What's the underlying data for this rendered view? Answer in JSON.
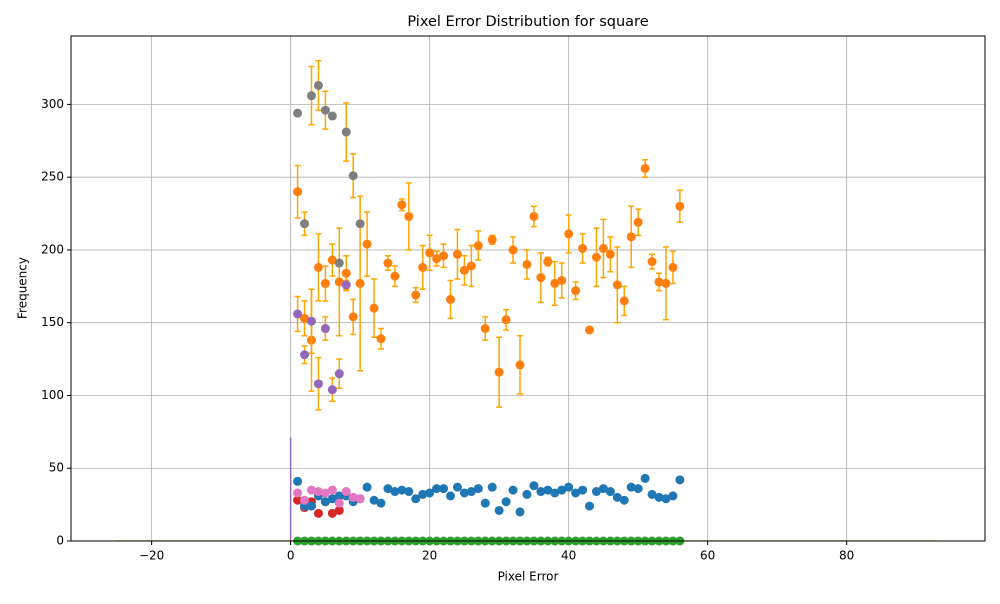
{
  "chart_data": {
    "type": "scatter",
    "title": "Pixel Error Distribution for square",
    "x_label": "Pixel Error",
    "y_label": "Frequency",
    "xlim": [
      -31.6,
      99.9
    ],
    "ylim": [
      0,
      347
    ],
    "xticks": [
      {
        "value": -20,
        "label": "−20"
      },
      0,
      20,
      40,
      60,
      80
    ],
    "yticks": [
      0,
      50,
      100,
      150,
      200,
      250,
      300
    ],
    "grid": true,
    "errorbar_color": "#ffa500",
    "series": [
      {
        "type": "line",
        "color": "#bcbd22",
        "x": [
          -25,
          93
        ],
        "values": [
          0,
          0
        ]
      },
      {
        "type": "line",
        "color": "#9467bd",
        "x": [
          0,
          0
        ],
        "values": [
          0,
          71
        ]
      },
      {
        "color": "#2ca02c",
        "x": [
          1,
          2,
          3,
          4,
          5,
          6,
          7,
          8,
          9,
          10,
          11,
          12,
          13,
          14,
          15,
          16,
          17,
          18,
          19,
          20,
          21,
          22,
          23,
          24,
          25,
          26,
          27,
          28,
          29,
          30,
          31,
          32,
          33,
          34,
          35,
          36,
          37,
          38,
          39,
          40,
          41,
          42,
          43,
          44,
          45,
          46,
          47,
          48,
          49,
          50,
          51,
          52,
          53,
          54,
          55,
          56
        ],
        "values": [
          0,
          0,
          0,
          0,
          0,
          0,
          0,
          0,
          0,
          0,
          0,
          0,
          0,
          0,
          0,
          0,
          0,
          0,
          0,
          0,
          0,
          0,
          0,
          0,
          0,
          0,
          0,
          0,
          0,
          0,
          0,
          0,
          0,
          0,
          0,
          0,
          0,
          0,
          0,
          0,
          0,
          0,
          0,
          0,
          0,
          0,
          0,
          0,
          0,
          0,
          0,
          0,
          0,
          0,
          0,
          0
        ]
      },
      {
        "color": "#d62728",
        "x": [
          1,
          2,
          3,
          4,
          5,
          6,
          7
        ],
        "values": [
          28,
          23,
          27,
          19,
          27,
          19,
          21
        ]
      },
      {
        "color": "#1f77b4",
        "x": [
          1,
          2,
          3,
          4,
          5,
          6,
          7,
          8,
          9,
          10,
          11,
          12,
          13,
          14,
          15,
          16,
          17,
          18,
          19,
          20,
          21,
          22,
          23,
          24,
          25,
          26,
          27,
          28,
          29,
          30,
          31,
          32,
          33,
          34,
          35,
          36,
          37,
          38,
          39,
          40,
          41,
          42,
          43,
          44,
          45,
          46,
          47,
          48,
          49,
          50,
          51,
          52,
          53,
          54,
          55,
          56
        ],
        "values": [
          41,
          24,
          24,
          31,
          27,
          29,
          31,
          31,
          27,
          29,
          37,
          28,
          26,
          36,
          34,
          35,
          34,
          29,
          32,
          33,
          36,
          36,
          31,
          37,
          33,
          34,
          36,
          26,
          37,
          21,
          27,
          35,
          20,
          32,
          38,
          34,
          35,
          33,
          35,
          37,
          33,
          35,
          24,
          34,
          36,
          34,
          30,
          28,
          37,
          36,
          43,
          32,
          30,
          29,
          31,
          42
        ]
      },
      {
        "color": "#ff7f0e",
        "x": [
          1,
          2,
          3,
          4,
          5,
          6,
          7,
          8,
          9,
          10,
          11,
          12,
          13,
          14,
          15,
          16,
          17,
          18,
          19,
          20,
          21,
          22,
          23,
          24,
          25,
          26,
          27,
          28,
          29,
          30,
          31,
          32,
          33,
          34,
          35,
          36,
          37,
          38,
          39,
          40,
          41,
          42,
          43,
          44,
          45,
          46,
          47,
          48,
          49,
          50,
          51,
          52,
          53,
          54,
          55,
          56
        ],
        "values": [
          240,
          153,
          138,
          188,
          177,
          193,
          178,
          184,
          154,
          177,
          204,
          160,
          139,
          191,
          182,
          231,
          223,
          169,
          188,
          198,
          194,
          196,
          166,
          197,
          186,
          189,
          203,
          146,
          207,
          116,
          152,
          200,
          121,
          190,
          223,
          181,
          192,
          177,
          179,
          211,
          172,
          201,
          145,
          195,
          201,
          197,
          176,
          165,
          209,
          219,
          256,
          192,
          178,
          177,
          188,
          230
        ],
        "errors": [
          18,
          12,
          35,
          23,
          12,
          11,
          37,
          12,
          12,
          60,
          22,
          20,
          7,
          5,
          7,
          4,
          23,
          5,
          15,
          12,
          5,
          8,
          13,
          17,
          10,
          14,
          10,
          8,
          3,
          24,
          7,
          9,
          20,
          10,
          7,
          17,
          3,
          15,
          12,
          13,
          6,
          10,
          2,
          20,
          20,
          12,
          26,
          10,
          21,
          9,
          6,
          5,
          6,
          25,
          11,
          11
        ]
      },
      {
        "color": "#7f7f7f",
        "x": [
          1,
          2,
          3,
          4,
          5,
          6,
          7,
          8,
          9,
          10
        ],
        "values": [
          294,
          218,
          306,
          313,
          296,
          292,
          191,
          281,
          251,
          218
        ],
        "errors": [
          2,
          8,
          20,
          17,
          13,
          2,
          2,
          20,
          15,
          2
        ]
      },
      {
        "color": "#9467bd",
        "x": [
          1,
          2,
          3,
          4,
          5,
          6,
          7,
          8
        ],
        "values": [
          156,
          128,
          151,
          108,
          146,
          104,
          115,
          176
        ],
        "errors": [
          12,
          6,
          22,
          18,
          8,
          8,
          10,
          3
        ]
      },
      {
        "color": "#e377c2",
        "x": [
          1,
          2,
          3,
          4,
          5,
          6,
          7,
          8,
          9,
          10
        ],
        "values": [
          33,
          28,
          35,
          34,
          33,
          35,
          26,
          34,
          30,
          29
        ]
      }
    ]
  }
}
